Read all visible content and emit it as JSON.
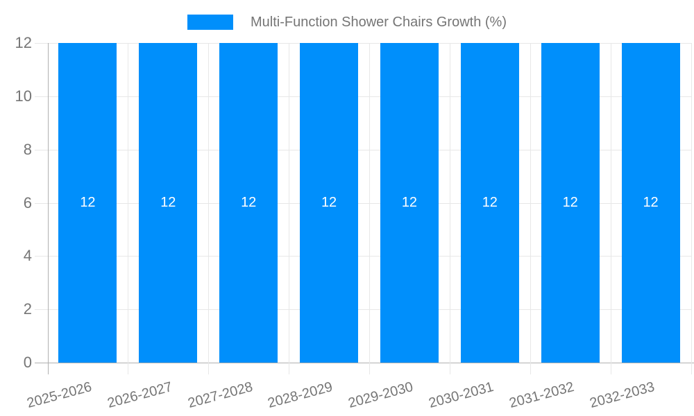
{
  "chart_data": {
    "type": "bar",
    "title": "Multi-Function Shower Chairs Growth (%)",
    "categories": [
      "2025-2026",
      "2026-2027",
      "2027-2028",
      "2028-2029",
      "2029-2030",
      "2030-2031",
      "2031-2032",
      "2032-2033"
    ],
    "series": [
      {
        "name": "Multi-Function Shower Chairs Growth (%)",
        "values": [
          12,
          12,
          12,
          12,
          12,
          12,
          12,
          12
        ]
      }
    ],
    "xlabel": "",
    "ylabel": "",
    "ylim": [
      0,
      12
    ],
    "yticks": [
      0,
      2,
      4,
      6,
      8,
      10,
      12
    ],
    "grid": true,
    "legend_position": "top",
    "bar_color": "#008FFB",
    "value_label_color": "#FFFFFF",
    "axis_text_color": "#757575",
    "gridline_color": "#E7E7E7",
    "axis_line_color": "#B0B0B0",
    "background_color": "#FFFFFF"
  },
  "legend": {
    "items": [
      {
        "label": "Multi-Function Shower Chairs Growth (%)",
        "swatch_color": "#008FFB"
      }
    ]
  }
}
